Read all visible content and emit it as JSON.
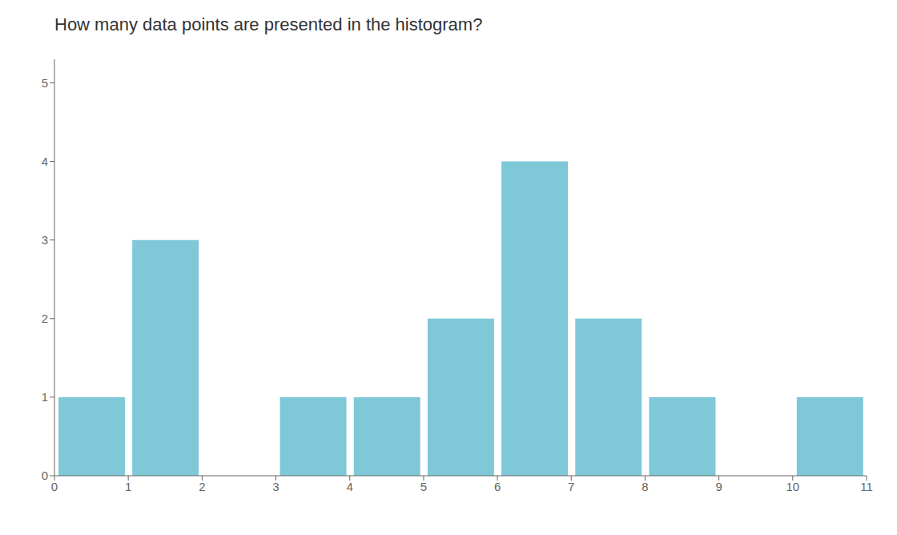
{
  "chart_data": {
    "type": "histogram",
    "title": "How many data points are presented in the histogram?",
    "bins": [
      0,
      1,
      2,
      3,
      4,
      5,
      6,
      7,
      8,
      9,
      10,
      11
    ],
    "values": [
      1,
      3,
      0,
      1,
      1,
      2,
      4,
      2,
      1,
      0,
      1
    ],
    "color": "#7EC8D8",
    "xlim": [
      0,
      11
    ],
    "ylim": [
      0,
      5.3
    ],
    "xticks": [
      0,
      1,
      2,
      3,
      4,
      5,
      6,
      7,
      8,
      9,
      10,
      11
    ],
    "yticks": [
      0,
      1,
      2,
      3,
      4,
      5
    ],
    "grid": false
  }
}
